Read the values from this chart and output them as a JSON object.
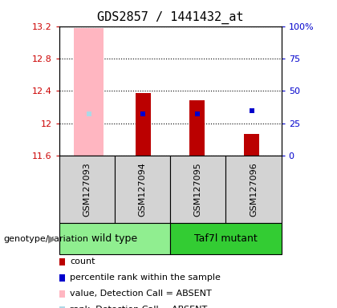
{
  "title": "GDS2857 / 1441432_at",
  "samples": [
    "GSM127093",
    "GSM127094",
    "GSM127095",
    "GSM127096"
  ],
  "ylim_left": [
    11.6,
    13.2
  ],
  "ylim_right": [
    0,
    100
  ],
  "yticks_left": [
    11.6,
    12.0,
    12.4,
    12.8,
    13.2
  ],
  "yticks_right": [
    0,
    25,
    50,
    75,
    100
  ],
  "ytick_labels_left": [
    "11.6",
    "12",
    "12.4",
    "12.8",
    "13.2"
  ],
  "ytick_labels_right": [
    "0",
    "25",
    "50",
    "75",
    "100%"
  ],
  "groups": [
    {
      "name": "wild type",
      "samples": [
        0,
        1
      ],
      "color": "#90ee90"
    },
    {
      "name": "Taf7l mutant",
      "samples": [
        2,
        3
      ],
      "color": "#33cc33"
    }
  ],
  "bar_data": [
    {
      "sample_idx": 0,
      "count_value": null,
      "count_color": null,
      "absent_value": 13.18,
      "absent_color": "#ffb6c1",
      "percentile_value": 12.12,
      "percentile_color": "#add8e6",
      "is_absent": true
    },
    {
      "sample_idx": 1,
      "count_value": 12.37,
      "count_color": "#bb0000",
      "absent_value": null,
      "absent_color": null,
      "percentile_value": 12.12,
      "percentile_color": "#0000cc",
      "is_absent": false
    },
    {
      "sample_idx": 2,
      "count_value": 12.28,
      "count_color": "#bb0000",
      "absent_value": null,
      "absent_color": null,
      "percentile_value": 12.12,
      "percentile_color": "#0000cc",
      "is_absent": false
    },
    {
      "sample_idx": 3,
      "count_value": 11.87,
      "count_color": "#bb0000",
      "absent_value": null,
      "absent_color": null,
      "percentile_value": 12.15,
      "percentile_color": "#0000cc",
      "is_absent": false
    }
  ],
  "bar_bottom": 11.6,
  "absent_bar_width": 0.55,
  "count_bar_width": 0.28,
  "group_label": "genotype/variation",
  "legend_items": [
    {
      "label": "count",
      "color": "#bb0000"
    },
    {
      "label": "percentile rank within the sample",
      "color": "#0000cc"
    },
    {
      "label": "value, Detection Call = ABSENT",
      "color": "#ffb6c1"
    },
    {
      "label": "rank, Detection Call = ABSENT",
      "color": "#add8e6"
    }
  ],
  "background_color": "#ffffff",
  "plot_bg_color": "#ffffff",
  "tick_color_left": "#cc0000",
  "tick_color_right": "#0000cc",
  "sample_box_color": "#d3d3d3",
  "font_size_title": 11,
  "font_size_ticks": 8,
  "font_size_labels": 8,
  "font_size_group": 9,
  "font_size_legend": 8
}
